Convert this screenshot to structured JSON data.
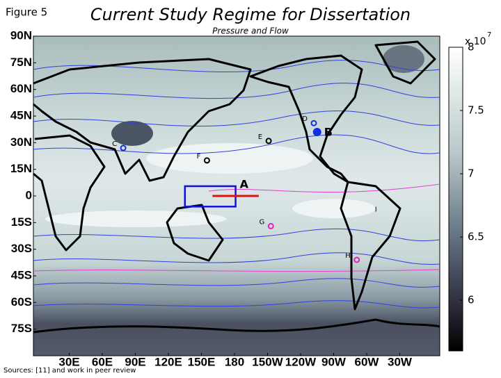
{
  "figure_label": "Figure 5",
  "title": "Current Study Regime for Dissertation",
  "subtitle": "Pressure and Flow",
  "map": {
    "lat_ticks": [
      {
        "value": 90,
        "label": "90N"
      },
      {
        "value": 75,
        "label": "75N"
      },
      {
        "value": 60,
        "label": "60N"
      },
      {
        "value": 45,
        "label": "45N"
      },
      {
        "value": 30,
        "label": "30N"
      },
      {
        "value": 15,
        "label": "15N"
      },
      0,
      {
        "value": -15,
        "label": "15S"
      },
      {
        "value": -30,
        "label": "30S"
      },
      {
        "value": -45,
        "label": "45S"
      },
      {
        "value": -60,
        "label": "60S"
      },
      {
        "value": -75,
        "label": "75S"
      }
    ],
    "lon_ticks": [
      {
        "value": 30,
        "label": "30E"
      },
      {
        "value": 60,
        "label": "60E"
      },
      {
        "value": 90,
        "label": "90E"
      },
      {
        "value": 120,
        "label": "120E"
      },
      {
        "value": 150,
        "label": "150E"
      },
      180,
      {
        "value": 210,
        "label": "150W"
      },
      {
        "value": 240,
        "label": "120W"
      },
      {
        "value": 270,
        "label": "90W"
      },
      {
        "value": 300,
        "label": "60W"
      },
      {
        "value": 330,
        "label": "30W"
      }
    ],
    "points": [
      {
        "label": "B",
        "lon": 255,
        "lat": 36,
        "color": "#1030e0",
        "filled": true
      },
      {
        "label": "C",
        "lon": 79,
        "lat": 27,
        "color": "#1030e0",
        "filled": false
      },
      {
        "label": "D",
        "lon": 252,
        "lat": 41,
        "color": "#1030e0",
        "filled": false
      },
      {
        "label": "E",
        "lon": 211,
        "lat": 31,
        "color": "#000000",
        "filled": false
      },
      {
        "label": "F",
        "lon": 155,
        "lat": 20,
        "color": "#000000",
        "filled": false
      },
      {
        "label": "G",
        "lon": 213,
        "lat": -17,
        "color": "#e020c0",
        "filled": false
      },
      {
        "label": "H",
        "lon": 291,
        "lat": -36,
        "color": "#e020c0",
        "filled": false
      },
      {
        "label": "I",
        "lon": 315,
        "lat": -10,
        "color": null,
        "filled": false
      }
    ],
    "region": {
      "label": "A",
      "lon": [
        135,
        181
      ],
      "lat": [
        -6,
        5.5
      ],
      "color": "#1010e0",
      "line": {
        "lon": [
          160,
          202
        ],
        "lat": 0,
        "color": "#e01010"
      }
    }
  },
  "colorbar": {
    "lim": [
      5.6,
      8
    ],
    "ticks": [
      6,
      6.5,
      7,
      7.5,
      8
    ],
    "exponent_base": "x 10",
    "exponent_power": "7"
  },
  "sources": "Sources: [11] and work in peer review"
}
